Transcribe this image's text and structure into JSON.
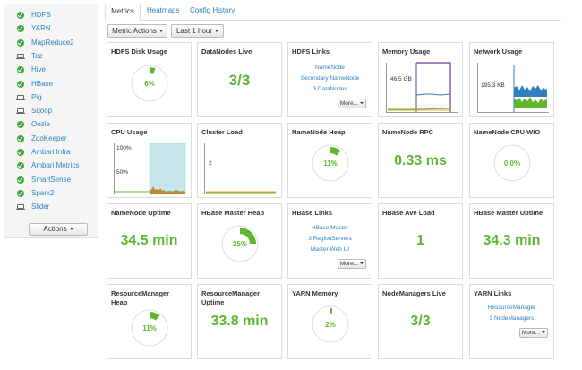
{
  "sidebar": {
    "services": [
      {
        "name": "HDFS",
        "status": "ok"
      },
      {
        "name": "YARN",
        "status": "ok"
      },
      {
        "name": "MapReduce2",
        "status": "ok"
      },
      {
        "name": "Tez",
        "status": "client"
      },
      {
        "name": "Hive",
        "status": "ok"
      },
      {
        "name": "HBase",
        "status": "ok"
      },
      {
        "name": "Pig",
        "status": "client"
      },
      {
        "name": "Sqoop",
        "status": "client"
      },
      {
        "name": "Oozie",
        "status": "ok"
      },
      {
        "name": "ZooKeeper",
        "status": "ok"
      },
      {
        "name": "Ambari Infra",
        "status": "ok"
      },
      {
        "name": "Ambari Metrics",
        "status": "ok"
      },
      {
        "name": "SmartSense",
        "status": "ok"
      },
      {
        "name": "Spark2",
        "status": "ok"
      },
      {
        "name": "Slider",
        "status": "client"
      }
    ],
    "actions_label": "Actions"
  },
  "tabs": [
    {
      "label": "Metrics",
      "active": true
    },
    {
      "label": "Heatmaps",
      "active": false
    },
    {
      "label": "Config History",
      "active": false
    }
  ],
  "toolbar": {
    "metric_actions_label": "Metric Actions",
    "time_range_label": "Last 1 hour"
  },
  "colors": {
    "accent_green": "#5fb631",
    "link_blue": "#2f7fc1",
    "pie_track": "#dddddd"
  },
  "widgets": {
    "hdfs_disk_usage": {
      "title": "HDFS Disk Usage",
      "percent": "6%",
      "fraction": 0.06
    },
    "datanodes_live": {
      "title": "DataNodes Live",
      "value": "3/3"
    },
    "hdfs_links": {
      "title": "HDFS Links",
      "links": [
        "NameNode",
        "Secondary NameNode",
        "3 DataNodes"
      ],
      "more_label": "More..."
    },
    "memory_usage": {
      "title": "Memory Usage",
      "label": "46.5 GB"
    },
    "network_usage": {
      "title": "Network Usage",
      "label": "195.3 KB"
    },
    "cpu_usage": {
      "title": "CPU Usage",
      "label_top": "100%",
      "label_mid": "50%"
    },
    "cluster_load": {
      "title": "Cluster Load",
      "label": "2"
    },
    "namenode_heap": {
      "title": "NameNode Heap",
      "percent": "11%",
      "fraction": 0.11
    },
    "namenode_rpc": {
      "title": "NameNode RPC",
      "value": "0.33 ms"
    },
    "namenode_cpu_wio": {
      "title": "NameNode CPU WIO",
      "percent": "0.0%",
      "fraction": 0.0
    },
    "namenode_uptime": {
      "title": "NameNode Uptime",
      "value": "34.5 min"
    },
    "hbase_master_heap": {
      "title": "HBase Master Heap",
      "percent": "25%",
      "fraction": 0.25
    },
    "hbase_links": {
      "title": "HBase Links",
      "links": [
        "HBase Master",
        "3 RegionServers",
        "Master Web UI"
      ],
      "more_label": "More..."
    },
    "hbase_ave_load": {
      "title": "HBase Ave Load",
      "value": "1"
    },
    "hbase_master_uptime": {
      "title": "HBase Master Uptime",
      "value": "34.3 min"
    },
    "rm_heap": {
      "title": "ResourceManager Heap",
      "percent": "11%",
      "fraction": 0.11
    },
    "rm_uptime": {
      "title": "ResourceManager Uptime",
      "value": "33.8 min"
    },
    "yarn_memory": {
      "title": "YARN Memory",
      "percent": "2%",
      "fraction": 0.02
    },
    "nodemanagers_live": {
      "title": "NodeManagers Live",
      "value": "3/3"
    },
    "yarn_links": {
      "title": "YARN Links",
      "links": [
        "ResourceManager",
        "3 NodeManagers"
      ],
      "more_label": "More..."
    }
  }
}
